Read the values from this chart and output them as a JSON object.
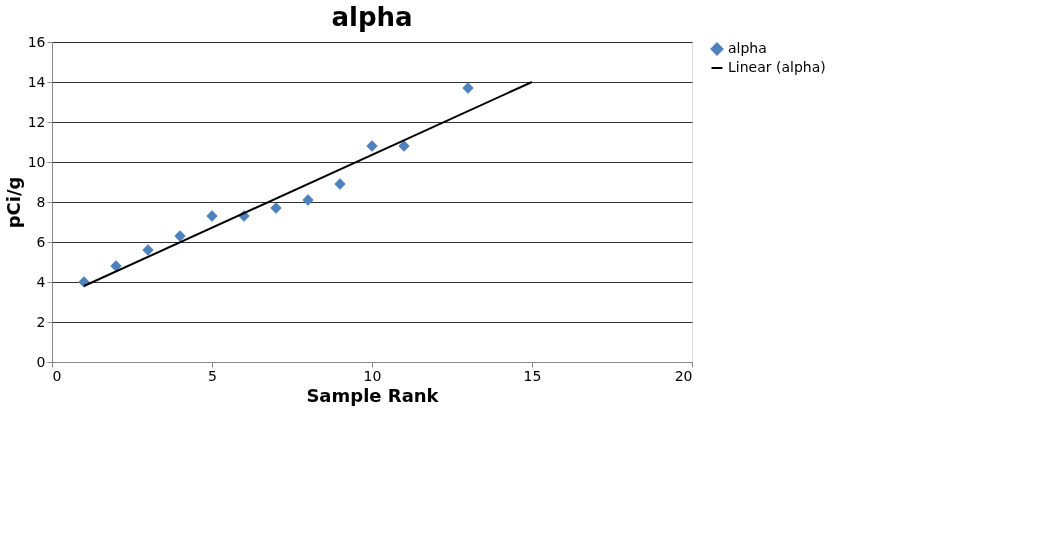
{
  "chart_data": {
    "type": "scatter",
    "title": "alpha",
    "xlabel": "Sample Rank",
    "ylabel": "pCi/g",
    "xlim": [
      0,
      20
    ],
    "xticks": [
      0,
      5,
      10,
      15,
      20
    ],
    "ylim": [
      0,
      16
    ],
    "yticks": [
      0,
      2,
      4,
      6,
      8,
      10,
      12,
      14,
      16
    ],
    "grid": "y",
    "legend": "right",
    "series": [
      {
        "name": "alpha",
        "color": "#4f81bd",
        "marker": "diamond",
        "x": [
          1,
          2,
          3,
          4,
          5,
          6,
          7,
          8,
          9,
          10,
          11,
          13
        ],
        "values": [
          4.0,
          4.8,
          5.6,
          6.3,
          7.3,
          7.3,
          7.7,
          8.1,
          8.9,
          10.8,
          10.8,
          13.7
        ]
      },
      {
        "name": "Linear (alpha)",
        "type": "line",
        "color": "#000000",
        "marker": "none",
        "line_style": "solid",
        "x": [
          1,
          15
        ],
        "values": [
          3.8,
          14.0
        ]
      }
    ]
  }
}
